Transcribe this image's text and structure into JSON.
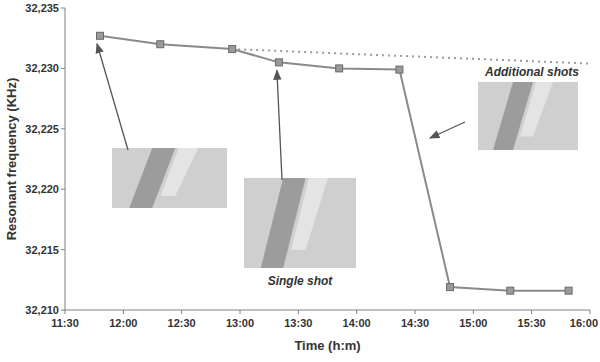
{
  "chart_data": {
    "type": "line",
    "x_label": "Time (h:m)",
    "y_label": "Resonant frequency (KHz)",
    "xlim": [
      690,
      960
    ],
    "xticks": [
      {
        "value": 690,
        "label": "11:30"
      },
      {
        "value": 720,
        "label": "12:00"
      },
      {
        "value": 750,
        "label": "12:30"
      },
      {
        "value": 780,
        "label": "13:00"
      },
      {
        "value": 810,
        "label": "13:30"
      },
      {
        "value": 840,
        "label": "14:00"
      },
      {
        "value": 870,
        "label": "14:30"
      },
      {
        "value": 900,
        "label": "15:00"
      },
      {
        "value": 930,
        "label": "15:30"
      },
      {
        "value": 960,
        "label": "16:00"
      }
    ],
    "ylim": [
      32.21,
      32.235
    ],
    "yticks": [
      {
        "value": 32.21,
        "label": "32,210"
      },
      {
        "value": 32.215,
        "label": "32,215"
      },
      {
        "value": 32.22,
        "label": "32,220"
      },
      {
        "value": 32.225,
        "label": "32,225"
      },
      {
        "value": 32.23,
        "label": "32,230"
      },
      {
        "value": 32.235,
        "label": "32,235"
      }
    ],
    "grid": false,
    "series": [
      {
        "color": "#8a8a8a",
        "marker": "square",
        "line_style": "solid",
        "x": [
          708,
          739,
          776,
          800,
          831,
          862,
          888,
          919,
          949
        ],
        "values": [
          32.2327,
          32.232,
          32.2316,
          32.2305,
          32.23,
          32.2299,
          32.2119,
          32.2116,
          32.2116
        ]
      },
      {
        "color": "#9a9a9a",
        "line_style": "dotted",
        "x": [
          776,
          960
        ],
        "values": [
          32.2316,
          32.2304
        ]
      }
    ],
    "annotations": [
      "Single shot",
      "Additional shots"
    ]
  }
}
